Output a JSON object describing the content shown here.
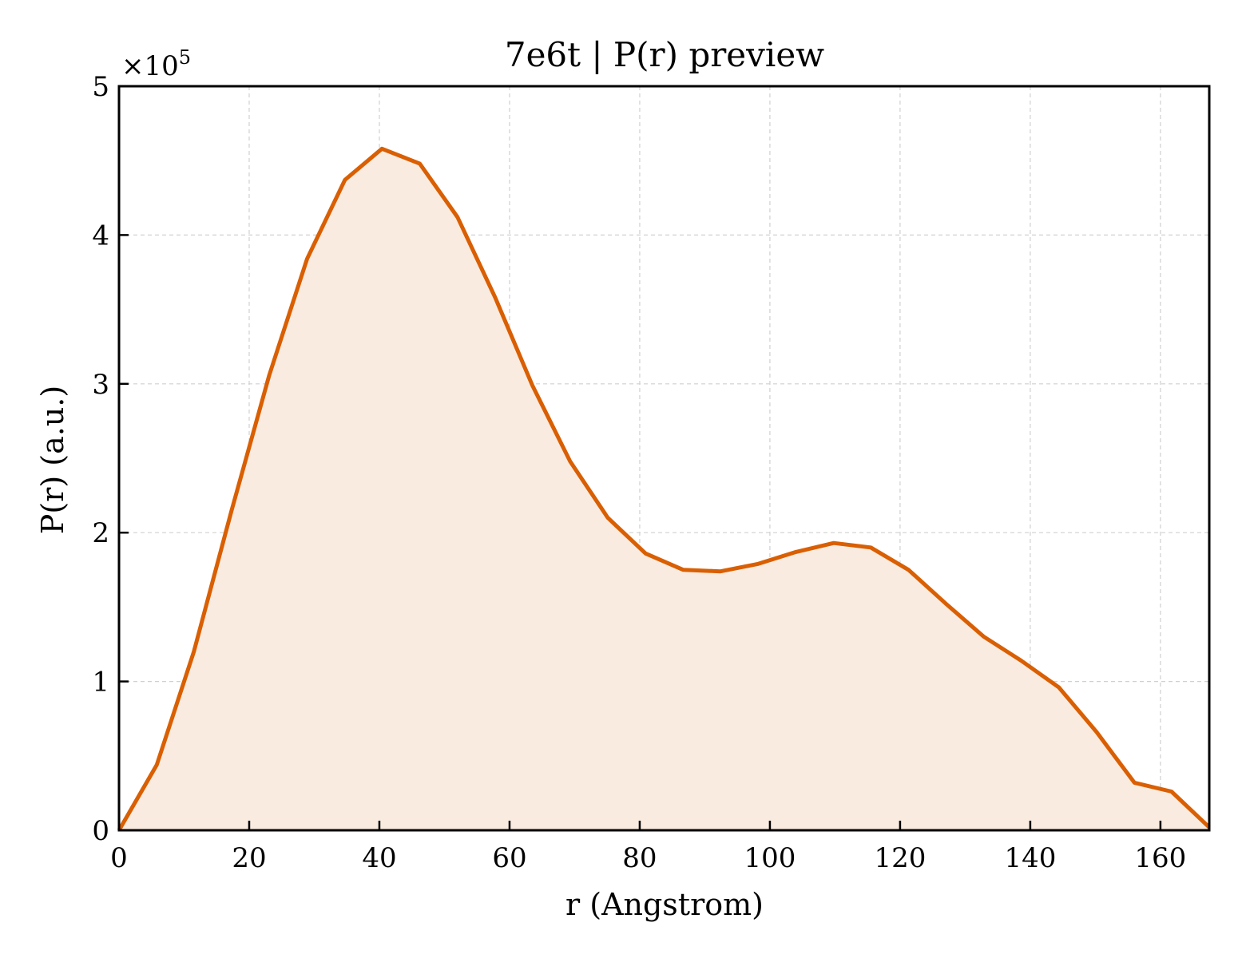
{
  "chart_data": {
    "type": "area",
    "title": "7e6t | P(r) preview",
    "xlabel": "r (Angstrom)",
    "ylabel": "P(r) (a.u.)",
    "y_multiplier": {
      "base": "×10",
      "exponent": "5"
    },
    "xlim": [
      0,
      167.5
    ],
    "ylim": [
      0,
      5.0
    ],
    "xticks": [
      0,
      20,
      40,
      60,
      80,
      100,
      120,
      140,
      160
    ],
    "yticks": [
      0,
      1,
      2,
      3,
      4,
      5
    ],
    "grid": true,
    "line_color": "#d95f02",
    "fill_color": "#f9ebe0",
    "series": [
      {
        "x": [
          0,
          5.8,
          11.5,
          17.3,
          23.1,
          28.9,
          34.7,
          40.4,
          46.2,
          52.0,
          57.8,
          63.5,
          69.3,
          75.1,
          80.9,
          86.7,
          92.4,
          98.2,
          104.0,
          109.8,
          115.5,
          121.3,
          127.1,
          132.9,
          138.6,
          144.4,
          150.2,
          156.0,
          161.7,
          167.5
        ],
        "y": [
          0.0,
          0.44,
          1.2,
          2.15,
          3.06,
          3.84,
          4.37,
          4.58,
          4.48,
          4.12,
          3.58,
          2.99,
          2.48,
          2.1,
          1.86,
          1.75,
          1.74,
          1.79,
          1.87,
          1.93,
          1.9,
          1.75,
          1.52,
          1.3,
          1.14,
          0.96,
          0.66,
          0.32,
          0.26,
          0.02
        ]
      }
    ]
  }
}
